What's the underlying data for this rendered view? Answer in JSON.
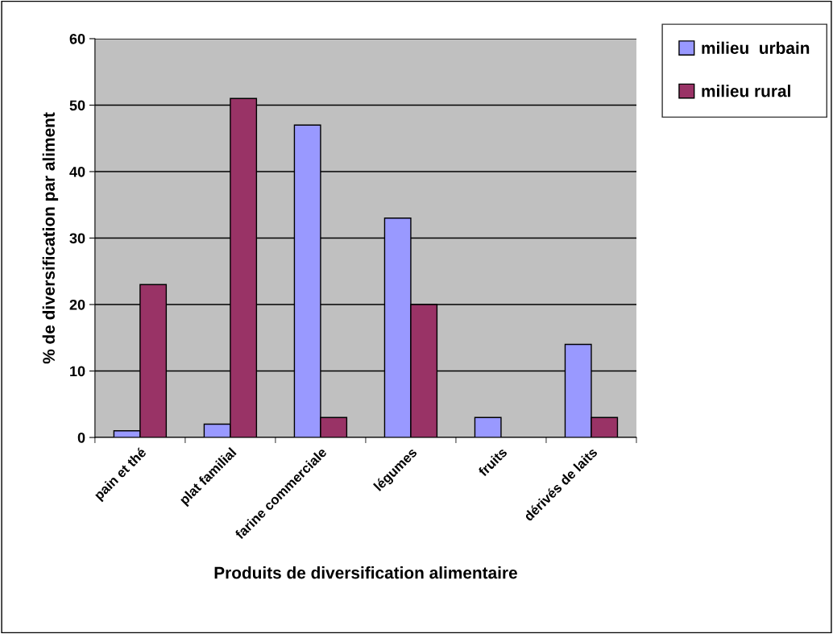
{
  "chart_data": {
    "type": "bar",
    "xlabel": "Produits de diversification alimentaire",
    "ylabel": "% de diversification par aliment",
    "categories": [
      "pain et thé",
      "plat familial",
      "farine commerciale",
      "légumes",
      "fruits",
      "dérivés de laits"
    ],
    "series": [
      {
        "name": "milieu  urbain",
        "color": "#9999ff",
        "values": [
          1,
          2,
          47,
          33,
          3,
          14
        ]
      },
      {
        "name": "milieu rural",
        "color": "#993366",
        "values": [
          23,
          51,
          3,
          20,
          null,
          3
        ]
      }
    ],
    "ylim": [
      0,
      60
    ],
    "yticks": [
      0,
      10,
      20,
      30,
      40,
      50,
      60
    ],
    "grid": "y",
    "legend": "top right"
  }
}
